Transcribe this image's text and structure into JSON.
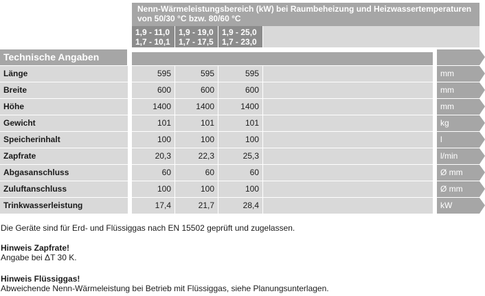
{
  "header": {
    "title_line1": "Nenn-Wärmeleistungsbereich (kW) bei Raumbeheizung und Heizwassertemperaturen",
    "title_line2": "von 50/30 °C bzw. 80/60 °C",
    "ranges": [
      {
        "line1": "1,9 - 11,0",
        "line2": "1,7 - 10,1"
      },
      {
        "line1": "1,9 - 19,0",
        "line2": "1,7 - 17,5"
      },
      {
        "line1": "1,9 - 25,0",
        "line2": "1,7 - 23,0"
      }
    ]
  },
  "section": {
    "title": "Technische Angaben"
  },
  "rows": [
    {
      "label": "Länge",
      "values": [
        "595",
        "595",
        "595"
      ],
      "unit": "mm"
    },
    {
      "label": "Breite",
      "values": [
        "600",
        "600",
        "600"
      ],
      "unit": "mm"
    },
    {
      "label": "Höhe",
      "values": [
        "1400",
        "1400",
        "1400"
      ],
      "unit": "mm"
    },
    {
      "label": "Gewicht",
      "values": [
        "101",
        "101",
        "101"
      ],
      "unit": "kg"
    },
    {
      "label": "Speicherinhalt",
      "values": [
        "100",
        "100",
        "100"
      ],
      "unit": "l"
    },
    {
      "label": "Zapfrate",
      "values": [
        "20,3",
        "22,3",
        "25,3"
      ],
      "unit": "l/min"
    },
    {
      "label": "Abgasanschluss",
      "values": [
        "60",
        "60",
        "60"
      ],
      "unit": "Ø mm"
    },
    {
      "label": "Zuluftanschluss",
      "values": [
        "100",
        "100",
        "100"
      ],
      "unit": "Ø mm"
    },
    {
      "label": "Trinkwasserleistung",
      "values": [
        "17,4",
        "21,7",
        "28,4"
      ],
      "unit": "kW"
    }
  ],
  "notes": {
    "general": "Die Geräte sind für Erd- und Flüssiggas nach EN 15502 geprüft und zugelassen.",
    "zapfrate_title": "Hinweis Zapfrate!",
    "zapfrate_text": "Angabe bei ΔT 30 K.",
    "fluessiggas_title": "Hinweis Flüssiggas!",
    "fluessiggas_text": "Abweichende Nenn-Wärmeleistung bei Betrieb mit Flüssiggas, siehe Planungsunterlagen."
  },
  "colors": {
    "header_gray": "#a6a6a6",
    "range_gray": "#8c8c8c",
    "row_gray": "#d9d9d9",
    "unit_text": "#ffffff"
  }
}
